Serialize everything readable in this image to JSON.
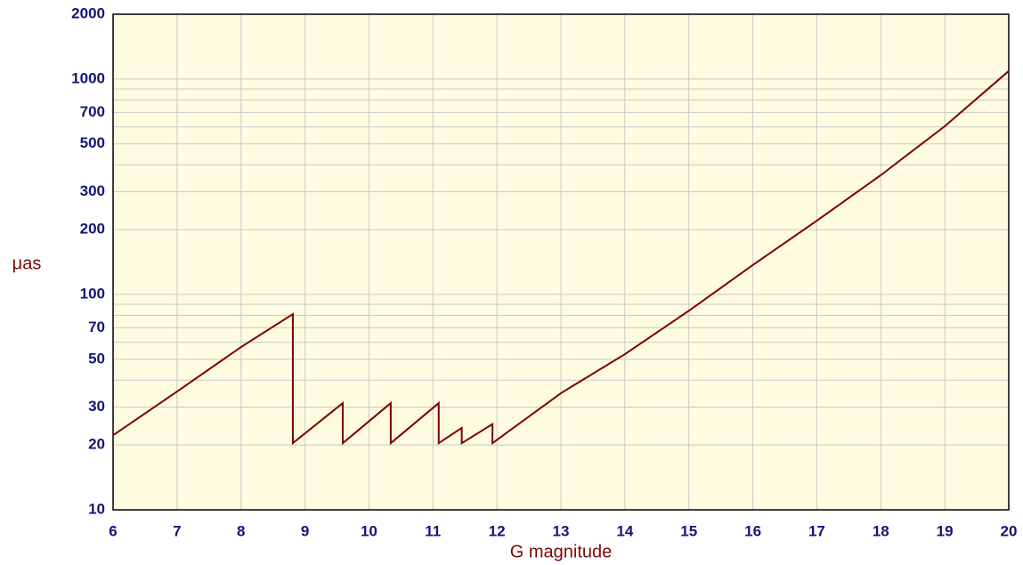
{
  "chart_data": {
    "type": "line",
    "xlabel": "G magnitude",
    "ylabel": "μas",
    "xlim": [
      6,
      20
    ],
    "xticks": [
      6,
      7,
      8,
      9,
      10,
      11,
      12,
      13,
      14,
      15,
      16,
      17,
      18,
      19,
      20
    ],
    "ylim": [
      10,
      2000
    ],
    "yticks": [
      10,
      20,
      30,
      50,
      70,
      100,
      200,
      300,
      500,
      700,
      1000,
      2000
    ],
    "y_minor_grid": [
      40,
      60,
      80,
      90,
      400,
      600,
      800,
      900
    ],
    "yscale": "log",
    "grid": true,
    "x": [
      6,
      7,
      8,
      8.81,
      8.81,
      9.59,
      9.59,
      10.34,
      10.34,
      11.09,
      11.09,
      11.45,
      11.45,
      11.93,
      11.93,
      13,
      14,
      15,
      16,
      17,
      18,
      19,
      20
    ],
    "series": [
      {
        "color": "#7a0000",
        "values": [
          22.2,
          35.4,
          57,
          81,
          20.4,
          31.3,
          20.4,
          31.3,
          20.4,
          31.3,
          20.4,
          24,
          20.4,
          25,
          20.4,
          34.8,
          52.8,
          84,
          137,
          220,
          358,
          604,
          1090
        ]
      }
    ]
  }
}
